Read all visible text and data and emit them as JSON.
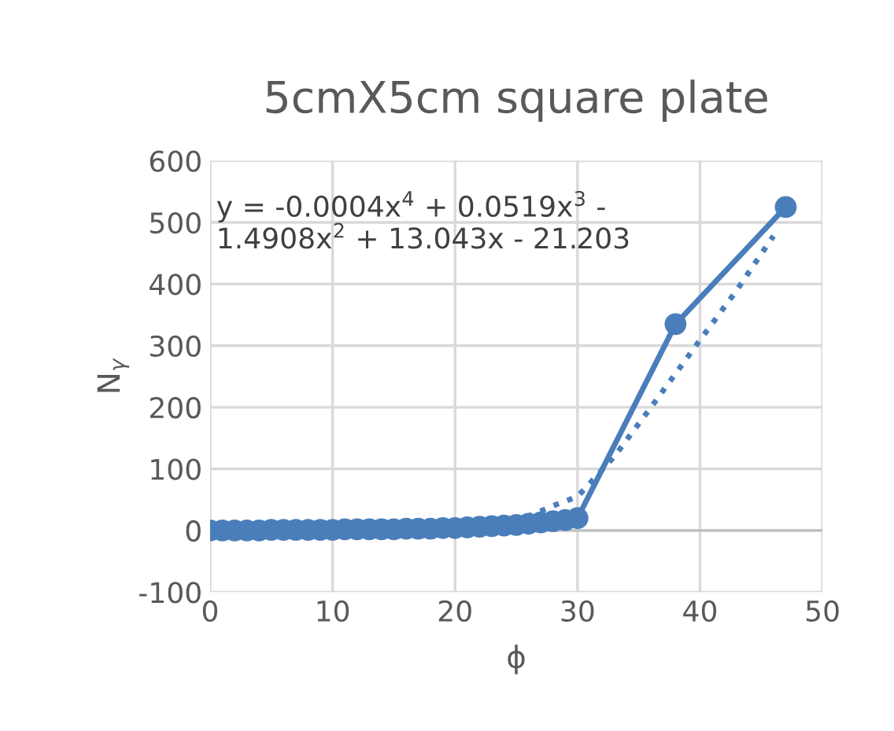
{
  "chart_data": {
    "type": "line",
    "title": "5cmX5cm square plate",
    "xlabel": "ϕ",
    "ylabel": "N$_{γ}$",
    "annotations": [
      "y = -0.0004x$^{4}$ + 0.0519x$^{3}$ -\n1.4908x$^{2}$ + 13.043x - 21.203"
    ],
    "series": [
      {
        "color": "#4a7ebb",
        "marker": "circle",
        "line_style": "solid",
        "x": [
          0,
          1,
          2,
          3,
          4,
          5,
          6,
          7,
          8,
          9,
          10,
          11,
          12,
          13,
          14,
          15,
          16,
          17,
          18,
          19,
          20,
          21,
          22,
          23,
          24,
          25,
          26,
          27,
          28,
          29,
          30,
          38,
          47
        ],
        "values": [
          0,
          0,
          0,
          0,
          0,
          1,
          1,
          1,
          1,
          1,
          1,
          2,
          2,
          2,
          2,
          2,
          3,
          3,
          3,
          4,
          4,
          5,
          6,
          7,
          8,
          9,
          11,
          13,
          15,
          17,
          20,
          335,
          525
        ]
      },
      {
        "type": "line",
        "color": "#4a7ebb",
        "marker": "none",
        "line_style": "dotted",
        "x": [
          0,
          10,
          20,
          25,
          28,
          30,
          33,
          36,
          40,
          43,
          46
        ],
        "values": [
          -10,
          0,
          0,
          15,
          40,
          55,
          120,
          200,
          309,
          390,
          478
        ]
      }
    ],
    "xlim": [
      0,
      50
    ],
    "xticks": [
      0,
      10,
      20,
      30,
      40,
      50
    ],
    "ylim": [
      -100,
      600
    ],
    "yticks": [
      -100,
      0,
      100,
      200,
      300,
      400,
      500,
      600
    ],
    "grid": true,
    "legend": false
  }
}
